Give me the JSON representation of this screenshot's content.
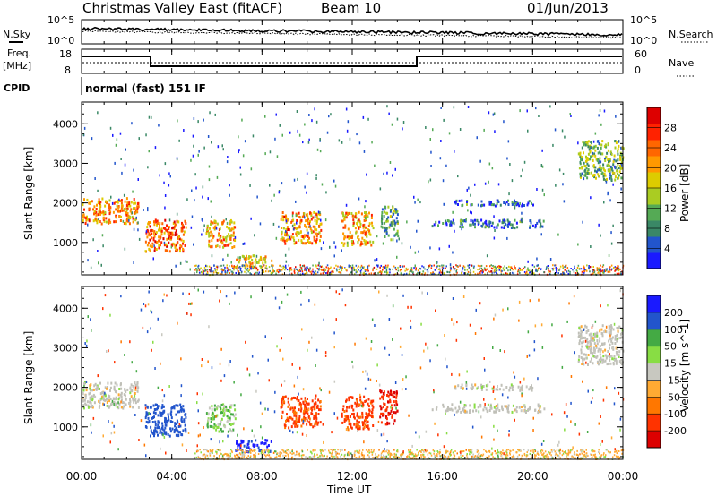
{
  "header": {
    "title": "Christmas Valley East (fitACF)",
    "beam": "Beam 10",
    "date": "01/Jun/2013"
  },
  "panels": {
    "noise": {
      "left_label": "N.Sky",
      "right_label": "N.Search",
      "left_ticks": [
        "10^5",
        "10^0"
      ],
      "right_ticks": [
        "10^5",
        "10^0"
      ]
    },
    "freq": {
      "left_label": "Freq.",
      "left_unit": "[MHz]",
      "right_label": "Nave",
      "left_ticks": [
        "18",
        "8"
      ],
      "right_ticks": [
        "60",
        "0"
      ]
    },
    "cpid": {
      "label": "CPID",
      "text": "normal (fast) 151 IF"
    }
  },
  "colors": {
    "power_scale": [
      "#1a1aff",
      "#2255cc",
      "#3a8866",
      "#55aa55",
      "#aacc22",
      "#ddcc00",
      "#ff9900",
      "#ff6600",
      "#ff2200",
      "#dd0000"
    ],
    "velocity_scale": [
      "#dd0000",
      "#ff3300",
      "#ff7700",
      "#ffaa33",
      "#c8c8c0",
      "#88dd44",
      "#44aa44",
      "#2255cc",
      "#1a1aff"
    ],
    "ground_scatter": "#c0c0b8"
  },
  "chart_data": [
    {
      "type": "heatmap",
      "name": "power",
      "ylabel": "Slant Range [km]",
      "yticks": [
        "1000",
        "2000",
        "3000",
        "4000"
      ],
      "ylim": [
        180,
        4550
      ],
      "xlim": [
        0,
        24
      ],
      "colorbar_label": "Power [dB]",
      "colorbar_ticks": [
        "4",
        "8",
        "12",
        "16",
        "20",
        "24",
        "28"
      ],
      "colorbar_range": [
        0,
        32
      ],
      "features": [
        {
          "t0": 0.0,
          "t1": 2.5,
          "r0": 1500,
          "r1": 2150,
          "level": 22
        },
        {
          "t0": 2.8,
          "t1": 4.6,
          "r0": 800,
          "r1": 1600,
          "level": 24
        },
        {
          "t0": 5.5,
          "t1": 6.8,
          "r0": 900,
          "r1": 1600,
          "level": 20
        },
        {
          "t0": 6.8,
          "t1": 8.4,
          "r0": 400,
          "r1": 700,
          "level": 18
        },
        {
          "t0": 8.8,
          "t1": 10.6,
          "r0": 1000,
          "r1": 1800,
          "level": 22
        },
        {
          "t0": 11.5,
          "t1": 12.9,
          "r0": 950,
          "r1": 1800,
          "level": 20
        },
        {
          "t0": 13.2,
          "t1": 14.0,
          "r0": 1100,
          "r1": 1950,
          "level": 10
        },
        {
          "t0": 15.5,
          "t1": 20.5,
          "r0": 1400,
          "r1": 1600,
          "level": 6
        },
        {
          "t0": 16.5,
          "t1": 20.0,
          "r0": 1950,
          "r1": 2100,
          "level": 6
        },
        {
          "t0": 22.0,
          "t1": 24.0,
          "r0": 2600,
          "r1": 3600,
          "level": 12
        }
      ]
    },
    {
      "type": "heatmap",
      "name": "velocity",
      "ylabel": "Slant Range [km]",
      "yticks": [
        "1000",
        "2000",
        "3000",
        "4000"
      ],
      "ylim": [
        180,
        4550
      ],
      "xlim": [
        0,
        24
      ],
      "xlabel": "Time UT",
      "xticks": [
        "00:00",
        "04:00",
        "08:00",
        "12:00",
        "16:00",
        "20:00",
        "00:00"
      ],
      "colorbar_label": "Velocity [m s^-1]",
      "colorbar_ticks": [
        "-200",
        "-100",
        "-50",
        "-15",
        "15",
        "50",
        "100",
        "200"
      ],
      "features": [
        {
          "t0": 0.0,
          "t1": 2.5,
          "r0": 1500,
          "r1": 2150,
          "velocity": 0
        },
        {
          "t0": 2.8,
          "t1": 4.6,
          "r0": 800,
          "r1": 1600,
          "velocity": 150
        },
        {
          "t0": 5.5,
          "t1": 6.8,
          "r0": 900,
          "r1": 1600,
          "velocity": 40
        },
        {
          "t0": 6.8,
          "t1": 8.4,
          "r0": 400,
          "r1": 700,
          "velocity": 220
        },
        {
          "t0": 8.8,
          "t1": 10.6,
          "r0": 1000,
          "r1": 1800,
          "velocity": -120
        },
        {
          "t0": 11.5,
          "t1": 12.9,
          "r0": 950,
          "r1": 1800,
          "velocity": -120
        },
        {
          "t0": 13.2,
          "t1": 14.0,
          "r0": 1100,
          "r1": 1950,
          "velocity": -200
        },
        {
          "t0": 15.5,
          "t1": 20.5,
          "r0": 1400,
          "r1": 1600,
          "velocity": 0
        },
        {
          "t0": 16.5,
          "t1": 20.0,
          "r0": 1950,
          "r1": 2100,
          "velocity": 0
        },
        {
          "t0": 22.0,
          "t1": 24.0,
          "r0": 2600,
          "r1": 3600,
          "velocity": 0
        }
      ]
    }
  ],
  "footer": {
    "xlabel": "Time UT"
  }
}
